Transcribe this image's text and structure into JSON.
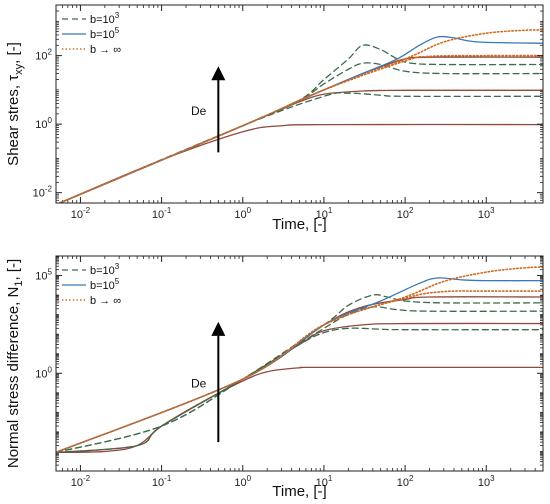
{
  "colors": {
    "b1e3": "#3d6b4c",
    "b1e5": "#3b78b8",
    "binf": "#d2691e",
    "overlap": "#8f4a3e"
  },
  "chart_data": [
    {
      "type": "line",
      "title": "",
      "xlabel": "Time, [-]",
      "ylabel": "Shear stres, τ_xy, [-]",
      "ylabel_parts": {
        "pre": "Shear stres, τ",
        "sub": "xy",
        "post": ", [-]"
      },
      "xscale": "log",
      "yscale": "log",
      "xlim": [
        0.005,
        5000
      ],
      "ylim": [
        0.005,
        3000
      ],
      "xticks": [
        {
          "v": 0.01,
          "b": "10",
          "e": "-2"
        },
        {
          "v": 0.1,
          "b": "10",
          "e": "-1"
        },
        {
          "v": 1,
          "b": "10",
          "e": "0"
        },
        {
          "v": 10,
          "b": "10",
          "e": "1"
        },
        {
          "v": 100,
          "b": "10",
          "e": "2"
        },
        {
          "v": 1000,
          "b": "10",
          "e": "3"
        }
      ],
      "yticks": [
        {
          "v": 0.01,
          "b": "10",
          "e": "-2"
        },
        {
          "v": 1,
          "b": "10",
          "e": "0"
        },
        {
          "v": 100,
          "b": "10",
          "e": "2"
        }
      ],
      "legend": {
        "placement": "top-left",
        "entries": [
          {
            "pre": "b=10",
            "sup": "3",
            "style": "dashed"
          },
          {
            "pre": "b=10",
            "sup": "5",
            "style": "solid"
          },
          {
            "pre": "b → ∞",
            "sup": "",
            "style": "dotted"
          }
        ]
      },
      "annotation": {
        "text": "De",
        "arrow_from": [
          0.5,
          0.15
        ],
        "arrow_to": [
          0.5,
          40
        ]
      },
      "series": [
        {
          "style": "solid",
          "color": "overlap",
          "points": [
            [
              0.005,
              0.0045
            ],
            [
              0.1,
              0.09
            ],
            [
              1,
              0.6
            ],
            [
              3,
              0.9
            ],
            [
              10,
              0.97
            ],
            [
              5000,
              0.97
            ]
          ]
        },
        {
          "style": "solid",
          "color": "overlap",
          "points": [
            [
              0.005,
              0.0045
            ],
            [
              0.1,
              0.09
            ],
            [
              1,
              0.9
            ],
            [
              3,
              2.7
            ],
            [
              5,
              4.5
            ],
            [
              10,
              7.5
            ],
            [
              30,
              9.3
            ],
            [
              100,
              9.7
            ],
            [
              5000,
              9.7
            ]
          ]
        },
        {
          "style": "dashed",
          "color": "b1e3",
          "points": [
            [
              0.005,
              0.0045
            ],
            [
              1,
              0.9
            ],
            [
              10,
              6.5
            ],
            [
              20,
              8
            ],
            [
              50,
              7
            ],
            [
              100,
              6.5
            ],
            [
              5000,
              6.5
            ]
          ]
        },
        {
          "style": "dashed",
          "color": "b1e3",
          "points": [
            [
              0.005,
              0.0045
            ],
            [
              1,
              0.9
            ],
            [
              5,
              5
            ],
            [
              10,
              15
            ],
            [
              20,
              40
            ],
            [
              30,
              60
            ],
            [
              50,
              55
            ],
            [
              100,
              35
            ],
            [
              300,
              30
            ],
            [
              5000,
              30
            ]
          ]
        },
        {
          "style": "dashed",
          "color": "b1e3",
          "points": [
            [
              0.005,
              0.0045
            ],
            [
              1,
              0.9
            ],
            [
              5,
              5
            ],
            [
              10,
              20
            ],
            [
              20,
              80
            ],
            [
              30,
              200
            ],
            [
              50,
              150
            ],
            [
              80,
              80
            ],
            [
              120,
              60
            ],
            [
              300,
              55
            ],
            [
              5000,
              55
            ]
          ]
        },
        {
          "style": "solid",
          "color": "overlap",
          "points": [
            [
              0.005,
              0.0045
            ],
            [
              1,
              0.9
            ],
            [
              5,
              5
            ],
            [
              10,
              10
            ],
            [
              30,
              30
            ],
            [
              60,
              55
            ],
            [
              100,
              80
            ],
            [
              200,
              90
            ],
            [
              5000,
              90
            ]
          ]
        },
        {
          "style": "dotted",
          "color": "binf",
          "points": [
            [
              0.005,
              0.0045
            ],
            [
              1,
              0.9
            ],
            [
              10,
              10
            ],
            [
              100,
              70
            ],
            [
              200,
              95
            ],
            [
              1000,
              100
            ],
            [
              5000,
              100
            ]
          ]
        },
        {
          "style": "solid",
          "color": "b1e5",
          "points": [
            [
              0.005,
              0.0045
            ],
            [
              1,
              0.9
            ],
            [
              10,
              10
            ],
            [
              30,
              30
            ],
            [
              80,
              80
            ],
            [
              150,
              200
            ],
            [
              250,
              350
            ],
            [
              400,
              330
            ],
            [
              800,
              250
            ],
            [
              5000,
              230
            ]
          ]
        },
        {
          "style": "dotted",
          "color": "binf",
          "points": [
            [
              0.005,
              0.0045
            ],
            [
              1,
              0.9
            ],
            [
              10,
              10
            ],
            [
              100,
              80
            ],
            [
              300,
              250
            ],
            [
              1000,
              450
            ],
            [
              3000,
              550
            ],
            [
              5000,
              560
            ]
          ]
        }
      ]
    },
    {
      "type": "line",
      "title": "",
      "xlabel": "Time, [-]",
      "ylabel": "Normal stress difference, N_1, [-]",
      "ylabel_parts": {
        "pre": "Normal stress difference, N",
        "sub": "1",
        "post": ", [-]"
      },
      "xscale": "log",
      "yscale": "log",
      "xlim": [
        0.005,
        5000
      ],
      "ylim": [
        1e-05,
        1000000
      ],
      "xticks": [
        {
          "v": 0.01,
          "b": "10",
          "e": "-2"
        },
        {
          "v": 0.1,
          "b": "10",
          "e": "-1"
        },
        {
          "v": 1,
          "b": "10",
          "e": "0"
        },
        {
          "v": 10,
          "b": "10",
          "e": "1"
        },
        {
          "v": 100,
          "b": "10",
          "e": "2"
        },
        {
          "v": 1000,
          "b": "10",
          "e": "3"
        }
      ],
      "yticks": [
        {
          "v": 1,
          "b": "10",
          "e": "0"
        },
        {
          "v": 100000,
          "b": "10",
          "e": "5"
        }
      ],
      "legend": {
        "placement": "top-left",
        "entries": [
          {
            "pre": "b=10",
            "sup": "3",
            "style": "dashed"
          },
          {
            "pre": "b=10",
            "sup": "5",
            "style": "solid"
          },
          {
            "pre": "b → ∞",
            "sup": "",
            "style": "dotted"
          }
        ]
      },
      "annotation": {
        "text": "De",
        "arrow_from": [
          0.5,
          0.0003
        ],
        "arrow_to": [
          0.5,
          300
        ]
      },
      "series": [
        {
          "style": "solid",
          "color": "overlap",
          "points": [
            [
              0.005,
              9e-05
            ],
            [
              0.02,
              0.0001
            ],
            [
              0.05,
              0.0002
            ],
            [
              0.1,
              0.002
            ],
            [
              0.3,
              0.03
            ],
            [
              1,
              0.4
            ],
            [
              2,
              1.2
            ],
            [
              5,
              1.9
            ],
            [
              10,
              2
            ],
            [
              5000,
              2
            ]
          ]
        },
        {
          "style": "solid",
          "color": "overlap",
          "points": [
            [
              0.005,
              9e-05
            ],
            [
              0.05,
              0.0002
            ],
            [
              0.1,
              0.002
            ],
            [
              1,
              0.5
            ],
            [
              5,
              30
            ],
            [
              10,
              150
            ],
            [
              30,
              300
            ],
            [
              100,
              350
            ],
            [
              5000,
              350
            ]
          ]
        },
        {
          "style": "dashed",
          "color": "b1e3",
          "points": [
            [
              0.005,
              9e-05
            ],
            [
              0.05,
              0.0002
            ],
            [
              0.1,
              0.002
            ],
            [
              1,
              0.5
            ],
            [
              5,
              30
            ],
            [
              10,
              120
            ],
            [
              20,
              200
            ],
            [
              50,
              180
            ],
            [
              100,
              170
            ],
            [
              5000,
              170
            ]
          ]
        },
        {
          "style": "dashed",
          "color": "b1e3",
          "points": [
            [
              0.005,
              9e-05
            ],
            [
              0.1,
              0.002
            ],
            [
              1,
              0.5
            ],
            [
              10,
              200
            ],
            [
              20,
              1000
            ],
            [
              40,
              2500
            ],
            [
              80,
              1800
            ],
            [
              200,
              1500
            ],
            [
              5000,
              1500
            ]
          ]
        },
        {
          "style": "dashed",
          "color": "b1e3",
          "points": [
            [
              0.005,
              9e-05
            ],
            [
              0.1,
              0.002
            ],
            [
              1,
              0.5
            ],
            [
              10,
              300
            ],
            [
              20,
              3000
            ],
            [
              40,
              10000
            ],
            [
              60,
              8000
            ],
            [
              100,
              5000
            ],
            [
              300,
              4000
            ],
            [
              5000,
              4000
            ]
          ]
        },
        {
          "style": "solid",
          "color": "overlap",
          "points": [
            [
              0.005,
              9e-05
            ],
            [
              1,
              0.5
            ],
            [
              10,
              300
            ],
            [
              30,
              2500
            ],
            [
              100,
              6000
            ],
            [
              200,
              8000
            ],
            [
              5000,
              8000
            ]
          ]
        },
        {
          "style": "dotted",
          "color": "binf",
          "points": [
            [
              0.005,
              9e-05
            ],
            [
              1,
              0.5
            ],
            [
              10,
              300
            ],
            [
              100,
              7000
            ],
            [
              300,
              15000
            ],
            [
              1000,
              16000
            ],
            [
              5000,
              16000
            ]
          ]
        },
        {
          "style": "solid",
          "color": "b1e5",
          "points": [
            [
              0.005,
              9e-05
            ],
            [
              1,
              0.5
            ],
            [
              10,
              300
            ],
            [
              50,
              5000
            ],
            [
              150,
              40000
            ],
            [
              250,
              75000
            ],
            [
              500,
              60000
            ],
            [
              1000,
              55000
            ],
            [
              5000,
              55000
            ]
          ]
        },
        {
          "style": "dotted",
          "color": "binf",
          "points": [
            [
              0.005,
              9e-05
            ],
            [
              1,
              0.5
            ],
            [
              10,
              300
            ],
            [
              100,
              8000
            ],
            [
              300,
              50000
            ],
            [
              1000,
              150000
            ],
            [
              3000,
              250000
            ],
            [
              5000,
              270000
            ]
          ]
        }
      ]
    }
  ]
}
